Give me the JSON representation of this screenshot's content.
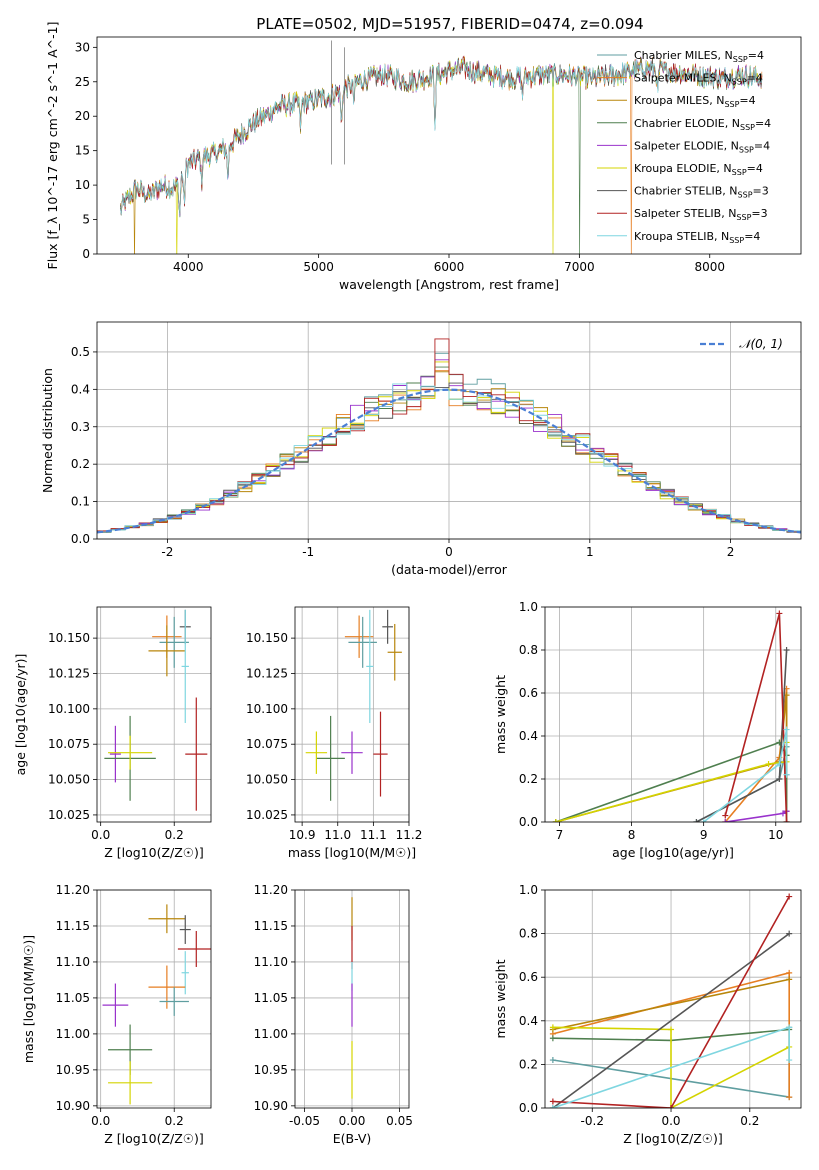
{
  "figure_title": "PLATE=0502, MJD=51957, FIBERID=0474, z=0.094",
  "colors": {
    "series": [
      "#5f9ea0",
      "#e67e22",
      "#b8860b",
      "#4f7f4f",
      "#9932cc",
      "#d4d400",
      "#555555",
      "#b22222",
      "#7fd6e0"
    ],
    "normal": "#4a7fd4",
    "grid": "#b0b0b0"
  },
  "chart_data": [
    {
      "id": "spectrum",
      "type": "line",
      "title": "PLATE=0502, MJD=51957, FIBERID=0474, z=0.094",
      "xlabel": "wavelength [Angstrom, rest frame]",
      "ylabel": "Flux [f_λ 10^-17 erg cm^-2 s^-1 A^-1]",
      "xlim": [
        3300,
        8700
      ],
      "ylim": [
        0,
        31.5
      ],
      "xticks": [
        4000,
        5000,
        6000,
        7000,
        8000
      ],
      "yticks": [
        0,
        5,
        10,
        15,
        20,
        25,
        30
      ],
      "grid": false,
      "legend_position": "right",
      "continuum": {
        "x": [
          3480,
          3600,
          3700,
          3800,
          3900,
          4000,
          4100,
          4200,
          4300,
          4500,
          4700,
          4900,
          5100,
          5300,
          5500,
          5700,
          5900,
          6100,
          6300,
          6500,
          6700,
          6900,
          7100,
          7300,
          7500,
          7700,
          7900,
          8100,
          8250,
          8400
        ],
        "y": [
          6.5,
          9.5,
          8.5,
          10.0,
          9.5,
          13.0,
          14.0,
          14.5,
          15.5,
          19.0,
          21.5,
          22.0,
          23.0,
          25.0,
          26.0,
          25.0,
          26.0,
          27.0,
          26.0,
          25.5,
          26.0,
          26.0,
          25.5,
          26.0,
          27.0,
          26.5,
          26.0,
          25.5,
          26.0,
          25.5
        ]
      },
      "absorption_lines": [
        {
          "x": 3934,
          "depth": 6
        },
        {
          "x": 3969,
          "depth": 5
        },
        {
          "x": 4102,
          "depth": 4
        },
        {
          "x": 4304,
          "depth": 5
        },
        {
          "x": 4861,
          "depth": 4
        },
        {
          "x": 5175,
          "depth": 6
        },
        {
          "x": 5270,
          "depth": 3
        },
        {
          "x": 5893,
          "depth": 7
        },
        {
          "x": 6563,
          "depth": 3
        },
        {
          "x": 7600,
          "depth": 4
        }
      ],
      "emission_features": [
        {
          "x": 5100,
          "y": 31
        },
        {
          "x": 5200,
          "y": 30
        }
      ],
      "drops": [
        {
          "x": 3590,
          "series": 2
        },
        {
          "x": 3910,
          "series": 5
        },
        {
          "x": 6800,
          "series": 5
        },
        {
          "x": 7400,
          "series": 1
        },
        {
          "x": 7000,
          "series": 3
        }
      ],
      "series": [
        {
          "name": "Chabrier MILES, N",
          "sub": "SSP",
          "suffix": "=4"
        },
        {
          "name": "Salpeter MILES, N",
          "sub": "SSP",
          "suffix": "=4"
        },
        {
          "name": "Kroupa MILES, N",
          "sub": "SSP",
          "suffix": "=4"
        },
        {
          "name": "Chabrier ELODIE, N",
          "sub": "SSP",
          "suffix": "=4"
        },
        {
          "name": "Salpeter ELODIE, N",
          "sub": "SSP",
          "suffix": "=4"
        },
        {
          "name": "Kroupa ELODIE, N",
          "sub": "SSP",
          "suffix": "=4"
        },
        {
          "name": "Chabrier STELIB, N",
          "sub": "SSP",
          "suffix": "=3"
        },
        {
          "name": "Salpeter STELIB, N",
          "sub": "SSP",
          "suffix": "=3"
        },
        {
          "name": "Kroupa STELIB, N",
          "sub": "SSP",
          "suffix": "=4"
        }
      ]
    },
    {
      "id": "residuals",
      "type": "histogram",
      "xlabel": "(data-model)/error",
      "ylabel": "Normed distribution",
      "xlim": [
        -2.5,
        2.5
      ],
      "ylim": [
        0,
        0.58
      ],
      "xticks": [
        -2,
        -1,
        0,
        1,
        2
      ],
      "yticks": [
        0.0,
        0.1,
        0.2,
        0.3,
        0.4,
        0.5
      ],
      "grid": true,
      "bin_width": 0.1,
      "legend_label": "𝒩(0, 1)",
      "legend_position": "top-right"
    },
    {
      "id": "age_vs_z",
      "type": "scatter",
      "xlabel": "Z [log10(Z/Z☉)]",
      "ylabel": "age [log10(age/yr)]",
      "xlim": [
        -0.01,
        0.3
      ],
      "ylim": [
        10.02,
        10.172
      ],
      "xticks": [
        0.0,
        0.2
      ],
      "yticks": [
        10.025,
        10.05,
        10.075,
        10.1,
        10.125,
        10.15
      ],
      "grid": true,
      "points": [
        {
          "x": 0.18,
          "y": 10.151,
          "ex": 0.04,
          "ey": 0.015,
          "series": 1
        },
        {
          "x": 0.23,
          "y": 10.158,
          "ex": 0.015,
          "ey": 0.012,
          "series": 6
        },
        {
          "x": 0.2,
          "y": 10.147,
          "ex": 0.04,
          "ey": 0.018,
          "series": 0
        },
        {
          "x": 0.18,
          "y": 10.141,
          "ex": 0.05,
          "ey": 0.018,
          "series": 2
        },
        {
          "x": 0.23,
          "y": 10.13,
          "ex": 0.01,
          "ey": 0.04,
          "series": 8
        },
        {
          "x": 0.04,
          "y": 10.068,
          "ex": 0.015,
          "ey": 0.02,
          "series": 4
        },
        {
          "x": 0.08,
          "y": 10.065,
          "ex": 0.07,
          "ey": 0.03,
          "series": 3
        },
        {
          "x": 0.08,
          "y": 10.069,
          "ex": 0.06,
          "ey": 0.012,
          "series": 5
        },
        {
          "x": 0.26,
          "y": 10.068,
          "ex": 0.03,
          "ey": 0.04,
          "series": 7
        }
      ]
    },
    {
      "id": "age_vs_mass",
      "type": "scatter",
      "xlabel": "mass [log10(M/M☉)]",
      "ylabel": "",
      "xlim": [
        10.88,
        11.2
      ],
      "ylim": [
        10.02,
        10.172
      ],
      "xticks": [
        10.9,
        11.0,
        11.1,
        11.2
      ],
      "yticks": [
        10.025,
        10.05,
        10.075,
        10.1,
        10.125,
        10.15
      ],
      "grid": true,
      "points": [
        {
          "x": 11.06,
          "y": 10.151,
          "ex": 0.04,
          "ey": 0.015,
          "series": 1
        },
        {
          "x": 11.14,
          "y": 10.158,
          "ex": 0.015,
          "ey": 0.012,
          "series": 6
        },
        {
          "x": 11.07,
          "y": 10.147,
          "ex": 0.04,
          "ey": 0.018,
          "series": 0
        },
        {
          "x": 11.16,
          "y": 10.14,
          "ex": 0.02,
          "ey": 0.02,
          "series": 2
        },
        {
          "x": 11.09,
          "y": 10.13,
          "ex": 0.01,
          "ey": 0.04,
          "series": 8
        },
        {
          "x": 11.04,
          "y": 10.069,
          "ex": 0.03,
          "ey": 0.015,
          "series": 4
        },
        {
          "x": 10.98,
          "y": 10.065,
          "ex": 0.04,
          "ey": 0.03,
          "series": 3
        },
        {
          "x": 10.94,
          "y": 10.069,
          "ex": 0.03,
          "ey": 0.015,
          "series": 5
        },
        {
          "x": 11.12,
          "y": 10.068,
          "ex": 0.02,
          "ey": 0.03,
          "series": 7
        }
      ]
    },
    {
      "id": "weight_vs_age",
      "type": "line",
      "xlabel": "age  [log10(age/yr)]",
      "ylabel": "mass weight",
      "xlim": [
        6.8,
        10.35
      ],
      "ylim": [
        0,
        1.0
      ],
      "xticks": [
        7,
        8,
        9,
        10
      ],
      "yticks": [
        0.0,
        0.2,
        0.4,
        0.6,
        0.8,
        1.0
      ],
      "grid": true,
      "series": [
        {
          "series": 0,
          "x": [
            8.9,
            10.05,
            10.15,
            10.15
          ],
          "y": [
            0.0,
            0.2,
            0.35,
            0.22
          ]
        },
        {
          "series": 1,
          "x": [
            9.3,
            10.05,
            10.15,
            10.15
          ],
          "y": [
            0.0,
            0.3,
            0.62,
            0.05
          ]
        },
        {
          "series": 2,
          "x": [
            6.95,
            10.05,
            10.15,
            10.15
          ],
          "y": [
            0.0,
            0.28,
            0.59,
            0.31
          ]
        },
        {
          "series": 3,
          "x": [
            6.95,
            10.05,
            10.15,
            10.15
          ],
          "y": [
            0.0,
            0.37,
            0.31,
            0.0
          ]
        },
        {
          "series": 4,
          "x": [
            9.3,
            10.1,
            10.15
          ],
          "y": [
            0.0,
            0.04,
            0.05
          ]
        },
        {
          "series": 5,
          "x": [
            6.95,
            9.9,
            10.15,
            10.15
          ],
          "y": [
            0.0,
            0.27,
            0.28,
            0.37
          ]
        },
        {
          "series": 6,
          "x": [
            8.9,
            10.05,
            10.15
          ],
          "y": [
            0.0,
            0.2,
            0.8
          ]
        },
        {
          "series": 7,
          "x": [
            9.3,
            10.05,
            10.15
          ],
          "y": [
            0.03,
            0.97,
            0.0
          ]
        },
        {
          "series": 8,
          "x": [
            9.0,
            10.05,
            10.15,
            10.15
          ],
          "y": [
            0.0,
            0.27,
            0.43,
            0.22
          ]
        }
      ]
    },
    {
      "id": "mass_vs_z",
      "type": "scatter",
      "xlabel": "Z [log10(Z/Z☉)]",
      "ylabel": "mass [log10(M/M☉)]",
      "xlim": [
        -0.01,
        0.3
      ],
      "ylim": [
        10.897,
        11.2
      ],
      "xticks": [
        0.0,
        0.2
      ],
      "yticks": [
        10.9,
        10.95,
        11.0,
        11.05,
        11.1,
        11.15,
        11.2
      ],
      "grid": true,
      "points": [
        {
          "x": 0.18,
          "y": 11.16,
          "ex": 0.05,
          "ey": 0.02,
          "series": 2
        },
        {
          "x": 0.23,
          "y": 11.145,
          "ex": 0.015,
          "ey": 0.02,
          "series": 6
        },
        {
          "x": 0.26,
          "y": 11.118,
          "ex": 0.05,
          "ey": 0.025,
          "series": 7
        },
        {
          "x": 0.23,
          "y": 11.085,
          "ex": 0.01,
          "ey": 0.03,
          "series": 8
        },
        {
          "x": 0.18,
          "y": 11.065,
          "ex": 0.05,
          "ey": 0.03,
          "series": 1
        },
        {
          "x": 0.2,
          "y": 11.045,
          "ex": 0.04,
          "ey": 0.02,
          "series": 0
        },
        {
          "x": 0.04,
          "y": 11.04,
          "ex": 0.035,
          "ey": 0.03,
          "series": 4
        },
        {
          "x": 0.08,
          "y": 10.978,
          "ex": 0.06,
          "ey": 0.035,
          "series": 3
        },
        {
          "x": 0.08,
          "y": 10.932,
          "ex": 0.06,
          "ey": 0.03,
          "series": 5
        }
      ]
    },
    {
      "id": "mass_vs_ebv",
      "type": "scatter",
      "xlabel": "E(B-V)",
      "ylabel": "",
      "xlim": [
        -0.06,
        0.06
      ],
      "ylim": [
        10.897,
        11.2
      ],
      "xticks": [
        -0.05,
        0.0,
        0.05
      ],
      "yticks": [
        10.9,
        10.95,
        11.0,
        11.05,
        11.1,
        11.15,
        11.2
      ],
      "grid": true,
      "points": [
        {
          "x": 0.0,
          "y": 11.16,
          "ex": 0.0,
          "ey": 0.03,
          "series": 2
        },
        {
          "x": 0.0,
          "y": 11.12,
          "ex": 0.0,
          "ey": 0.03,
          "series": 7
        },
        {
          "x": 0.0,
          "y": 11.08,
          "ex": 0.0,
          "ey": 0.02,
          "series": 8
        },
        {
          "x": 0.0,
          "y": 11.04,
          "ex": 0.0,
          "ey": 0.03,
          "series": 4
        },
        {
          "x": 0.0,
          "y": 10.95,
          "ex": 0.0,
          "ey": 0.04,
          "series": 5
        }
      ]
    },
    {
      "id": "weight_vs_z",
      "type": "line",
      "xlabel": "Z [log10(Z/Z☉)]",
      "ylabel": "mass weight",
      "xlim": [
        -0.32,
        0.33
      ],
      "ylim": [
        0,
        1.0
      ],
      "xticks": [
        -0.2,
        0.0,
        0.2
      ],
      "yticks": [
        0.0,
        0.2,
        0.4,
        0.6,
        0.8,
        1.0
      ],
      "grid": true,
      "series": [
        {
          "series": 0,
          "x": [
            -0.3,
            0.3,
            0.3
          ],
          "y": [
            0.22,
            0.05,
            0.37
          ]
        },
        {
          "series": 1,
          "x": [
            -0.3,
            0.3,
            0.3
          ],
          "y": [
            0.34,
            0.62,
            0.05
          ]
        },
        {
          "series": 2,
          "x": [
            -0.3,
            0.3
          ],
          "y": [
            0.36,
            0.59
          ]
        },
        {
          "series": 3,
          "x": [
            -0.3,
            0.0,
            0.3
          ],
          "y": [
            0.32,
            0.31,
            0.36
          ]
        },
        {
          "series": 5,
          "x": [
            -0.3,
            0.0,
            0.0,
            0.3
          ],
          "y": [
            0.37,
            0.36,
            0.0,
            0.28
          ]
        },
        {
          "series": 6,
          "x": [
            -0.3,
            0.3
          ],
          "y": [
            0.0,
            0.8
          ]
        },
        {
          "series": 7,
          "x": [
            -0.3,
            0.0,
            0.3
          ],
          "y": [
            0.03,
            0.0,
            0.97
          ]
        },
        {
          "series": 8,
          "x": [
            -0.3,
            0.3,
            0.3
          ],
          "y": [
            0.0,
            0.37,
            0.22
          ]
        }
      ]
    }
  ]
}
